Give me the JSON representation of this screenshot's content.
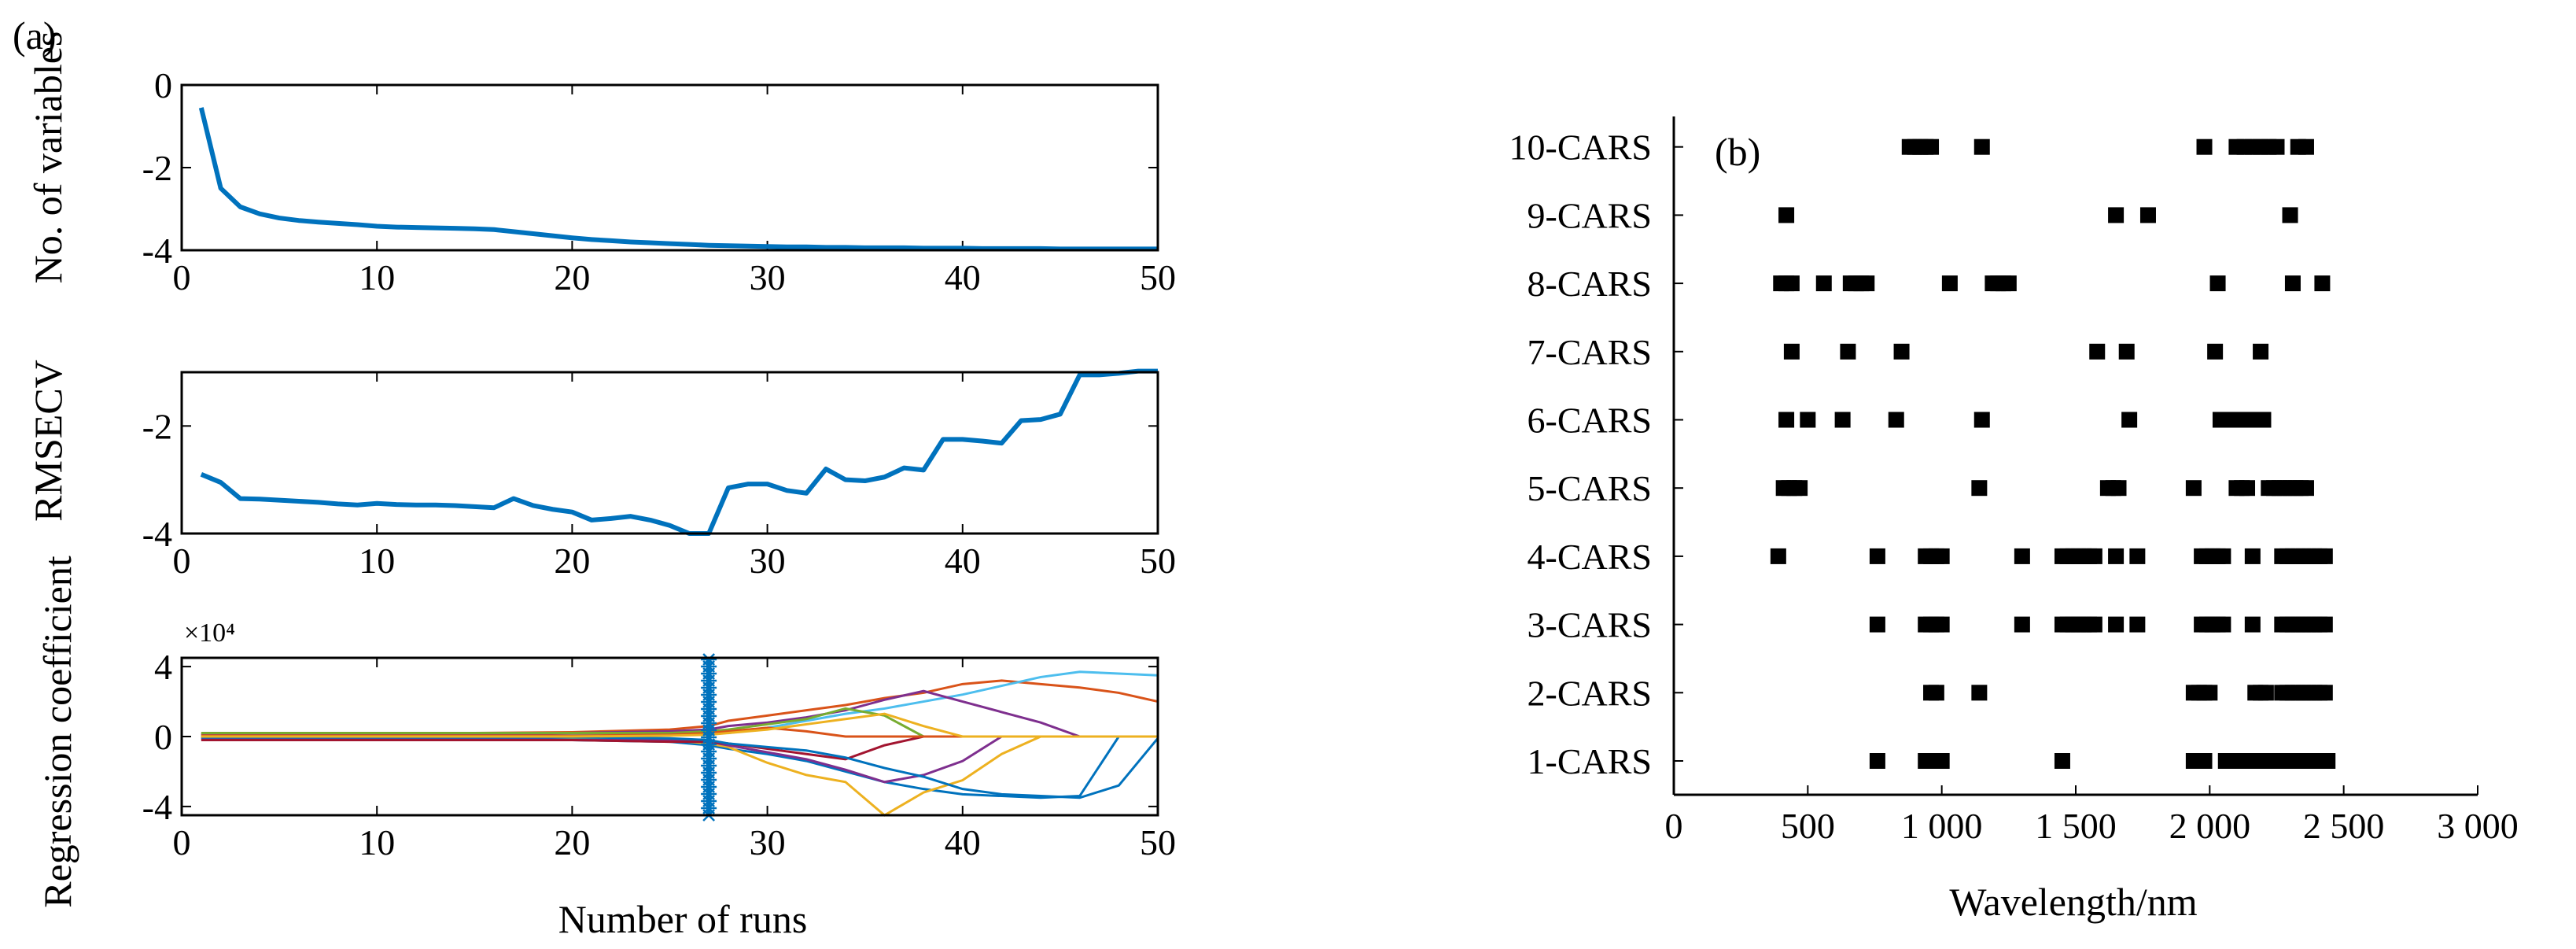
{
  "colors": {
    "main_line": "#0072BD",
    "marker": "#000000",
    "palette": [
      "#0072BD",
      "#D95319",
      "#EDB120",
      "#7E2F8E",
      "#77AC30",
      "#4DBEEE",
      "#A2142F"
    ]
  },
  "chart_data": [
    {
      "id": "a1",
      "panel_label": "(a)",
      "type": "line",
      "ylabel": "No. of variables",
      "xlim": [
        0,
        50
      ],
      "ylim": [
        -4,
        0
      ],
      "xticks": [
        "0",
        "10",
        "20",
        "30",
        "40",
        "50"
      ],
      "yticks": [
        "0",
        "-2",
        "-4"
      ],
      "x": [
        1,
        2,
        3,
        4,
        5,
        6,
        7,
        8,
        9,
        10,
        11,
        12,
        13,
        14,
        15,
        16,
        17,
        18,
        19,
        20,
        21,
        22,
        23,
        24,
        25,
        26,
        27,
        28,
        29,
        30,
        31,
        32,
        33,
        34,
        35,
        36,
        37,
        38,
        39,
        40,
        41,
        42,
        43,
        44,
        45,
        46,
        47,
        48,
        49,
        50
      ],
      "values": [
        -0.55,
        -2.5,
        -2.95,
        -3.12,
        -3.22,
        -3.28,
        -3.32,
        -3.35,
        -3.38,
        -3.42,
        -3.44,
        -3.45,
        -3.46,
        -3.47,
        -3.48,
        -3.5,
        -3.55,
        -3.6,
        -3.65,
        -3.7,
        -3.74,
        -3.77,
        -3.8,
        -3.82,
        -3.84,
        -3.86,
        -3.88,
        -3.89,
        -3.9,
        -3.91,
        -3.92,
        -3.92,
        -3.93,
        -3.93,
        -3.94,
        -3.94,
        -3.94,
        -3.95,
        -3.95,
        -3.95,
        -3.96,
        -3.96,
        -3.96,
        -3.96,
        -3.97,
        -3.97,
        -3.97,
        -3.97,
        -3.97,
        -3.97
      ]
    },
    {
      "id": "a2",
      "type": "line",
      "ylabel": "RMSECV",
      "xlim": [
        0,
        50
      ],
      "ylim": [
        -4,
        -1
      ],
      "xticks": [
        "0",
        "10",
        "20",
        "30",
        "40",
        "50"
      ],
      "yticks": [
        "-2",
        "-4"
      ],
      "x": [
        1,
        2,
        3,
        4,
        5,
        6,
        7,
        8,
        9,
        10,
        11,
        12,
        13,
        14,
        15,
        16,
        17,
        18,
        19,
        20,
        21,
        22,
        23,
        24,
        25,
        26,
        27,
        28,
        29,
        30,
        31,
        32,
        33,
        34,
        35,
        36,
        37,
        38,
        39,
        40,
        41,
        42,
        43,
        44,
        45,
        46,
        47,
        48,
        49,
        50
      ],
      "values": [
        -2.9,
        -3.05,
        -3.35,
        -3.36,
        -3.38,
        -3.4,
        -3.42,
        -3.45,
        -3.47,
        -3.44,
        -3.46,
        -3.47,
        -3.47,
        -3.48,
        -3.5,
        -3.52,
        -3.35,
        -3.48,
        -3.55,
        -3.6,
        -3.75,
        -3.72,
        -3.68,
        -3.75,
        -3.85,
        -4.0,
        -4.0,
        -3.15,
        -3.08,
        -3.08,
        -3.2,
        -3.25,
        -2.8,
        -3.0,
        -3.02,
        -2.95,
        -2.78,
        -2.82,
        -2.25,
        -2.25,
        -2.28,
        -2.32,
        -1.9,
        -1.88,
        -1.78,
        -1.05,
        -1.05,
        -1.02,
        -0.98,
        -0.98
      ]
    },
    {
      "id": "a3",
      "type": "line",
      "ylabel": "Regression coefficient",
      "xlabel": "Number of runs",
      "exponent_label": "×10⁴",
      "xlim": [
        0,
        50
      ],
      "ylim": [
        -4.5,
        4.5
      ],
      "xticks": [
        "0",
        "10",
        "20",
        "30",
        "40",
        "50"
      ],
      "yticks": [
        "4",
        "0",
        "-4"
      ],
      "optimal_run": 27,
      "x": [
        1,
        5,
        10,
        15,
        20,
        25,
        27,
        28,
        30,
        32,
        34,
        36,
        38,
        40,
        42,
        44,
        46,
        48,
        50
      ],
      "series": [
        {
          "values": [
            0.15,
            0.15,
            0.2,
            0.2,
            0.25,
            0.4,
            0.6,
            0.9,
            1.2,
            1.5,
            1.8,
            2.2,
            2.5,
            3.0,
            3.2,
            3.0,
            2.8,
            2.5,
            2.0
          ],
          "color": "#D95319"
        },
        {
          "values": [
            -0.1,
            -0.1,
            -0.1,
            -0.15,
            -0.2,
            -0.3,
            -0.5,
            -0.7,
            -1.0,
            -1.4,
            -2.0,
            -2.6,
            -3.0,
            -3.3,
            -3.4,
            -3.5,
            -3.4,
            0.0,
            0.0
          ],
          "color": "#0072BD"
        },
        {
          "values": [
            0.05,
            0.05,
            0.1,
            0.1,
            0.1,
            0.2,
            0.3,
            0.2,
            0.5,
            0.9,
            1.3,
            1.6,
            2.0,
            2.4,
            2.9,
            3.4,
            3.7,
            3.6,
            3.5
          ],
          "color": "#4DBEEE"
        },
        {
          "values": [
            -0.05,
            -0.05,
            -0.05,
            -0.1,
            -0.1,
            -0.2,
            -0.4,
            -0.6,
            -1.5,
            -2.2,
            -2.6,
            -4.5,
            -3.2,
            -2.5,
            -1.0,
            0.0,
            0.0,
            0.0,
            0.0
          ],
          "color": "#EDB120"
        },
        {
          "values": [
            0.1,
            0.1,
            0.1,
            0.1,
            0.2,
            0.3,
            0.4,
            0.6,
            0.8,
            1.1,
            1.5,
            2.1,
            2.6,
            2.0,
            1.4,
            0.8,
            0.0,
            0.0,
            0.0
          ],
          "color": "#7E2F8E"
        },
        {
          "values": [
            -0.1,
            -0.1,
            -0.1,
            -0.1,
            -0.2,
            -0.2,
            -0.3,
            -0.5,
            -0.9,
            -1.3,
            -1.9,
            -2.6,
            -2.2,
            -1.4,
            0.0,
            0.0,
            0.0,
            0.0,
            0.0
          ],
          "color": "#7E2F8E"
        },
        {
          "values": [
            0.2,
            0.2,
            0.2,
            0.2,
            0.2,
            0.2,
            0.3,
            0.4,
            0.7,
            1.0,
            1.6,
            1.2,
            0.0,
            0.0,
            0.0,
            0.0,
            0.0,
            0.0,
            0.0
          ],
          "color": "#77AC30"
        },
        {
          "values": [
            -0.2,
            -0.2,
            -0.2,
            -0.2,
            -0.2,
            -0.3,
            -0.3,
            -0.4,
            -0.7,
            -1.0,
            -1.3,
            -0.5,
            0.0,
            0.0,
            0.0,
            0.0,
            0.0,
            0.0,
            0.0
          ],
          "color": "#A2142F"
        },
        {
          "values": [
            0.05,
            0.05,
            0.05,
            0.05,
            0.05,
            0.1,
            0.2,
            0.3,
            0.5,
            0.3,
            0.0,
            0.0,
            0.0,
            0.0,
            0.0,
            0.0,
            0.0,
            0.0,
            0.0
          ],
          "color": "#D95319"
        },
        {
          "values": [
            -0.05,
            -0.05,
            -0.05,
            -0.05,
            -0.05,
            -0.1,
            -0.2,
            -0.4,
            -0.6,
            -0.8,
            -1.2,
            -1.8,
            -2.3,
            -3.0,
            -3.3,
            -3.4,
            -3.5,
            -2.8,
            -0.1
          ],
          "color": "#0072BD"
        },
        {
          "values": [
            0.0,
            0.0,
            0.0,
            0.0,
            0.0,
            0.05,
            0.1,
            0.2,
            0.4,
            0.7,
            1.0,
            1.3,
            0.6,
            0.0,
            0.0,
            0.0,
            0.0,
            0.0,
            0.0
          ],
          "color": "#EDB120"
        }
      ]
    },
    {
      "id": "b",
      "panel_label": "(b)",
      "type": "scatter",
      "xlabel": "Wavelength/nm",
      "xlim": [
        0,
        3000
      ],
      "xticks": [
        "0",
        "500",
        "1 000",
        "1 500",
        "2 000",
        "2 500",
        "3 000"
      ],
      "categories": [
        "1-CARS",
        "2-CARS",
        "3-CARS",
        "4-CARS",
        "5-CARS",
        "6-CARS",
        "7-CARS",
        "8-CARS",
        "9-CARS",
        "10-CARS"
      ],
      "points": [
        [
          760,
          940,
          960,
          980,
          1000,
          1450,
          1940,
          1960,
          1980,
          2060,
          2080,
          2100,
          2120,
          2140,
          2160,
          2180,
          2200,
          2220,
          2240,
          2260,
          2280,
          2300,
          2320,
          2340,
          2360,
          2380,
          2400,
          2420,
          2440
        ],
        [
          960,
          980,
          1140,
          1940,
          1960,
          1980,
          2000,
          2170,
          2190,
          2210,
          2270,
          2290,
          2310,
          2330,
          2350,
          2370,
          2390,
          2410,
          2430
        ],
        [
          760,
          940,
          960,
          980,
          1000,
          1300,
          1450,
          1470,
          1490,
          1510,
          1530,
          1550,
          1570,
          1650,
          1730,
          1970,
          1990,
          2010,
          2030,
          2050,
          2160,
          2270,
          2290,
          2310,
          2330,
          2350,
          2370,
          2390,
          2410,
          2430
        ],
        [
          390,
          760,
          940,
          960,
          980,
          1000,
          1300,
          1450,
          1470,
          1490,
          1510,
          1530,
          1550,
          1570,
          1650,
          1730,
          1970,
          1990,
          2010,
          2030,
          2050,
          2160,
          2270,
          2290,
          2310,
          2330,
          2350,
          2370,
          2390,
          2410,
          2430
        ],
        [
          410,
          430,
          450,
          470,
          1140,
          1620,
          1640,
          1660,
          1940,
          2100,
          2120,
          2140,
          2220,
          2240,
          2260,
          2280,
          2300,
          2320,
          2340,
          2360
        ],
        [
          420,
          500,
          630,
          830,
          1150,
          1700,
          2040,
          2060,
          2080,
          2100,
          2140,
          2160,
          2180,
          2200
        ],
        [
          440,
          650,
          850,
          1580,
          1690,
          2020,
          2190
        ],
        [
          400,
          420,
          440,
          560,
          660,
          680,
          700,
          720,
          1030,
          1190,
          1210,
          1230,
          1250,
          2030,
          2310,
          2420
        ],
        [
          420,
          1650,
          1770,
          2300
        ],
        [
          880,
          900,
          920,
          940,
          960,
          1150,
          1980,
          2100,
          2130,
          2160,
          2190,
          2220,
          2250,
          2330,
          2360
        ]
      ]
    }
  ]
}
